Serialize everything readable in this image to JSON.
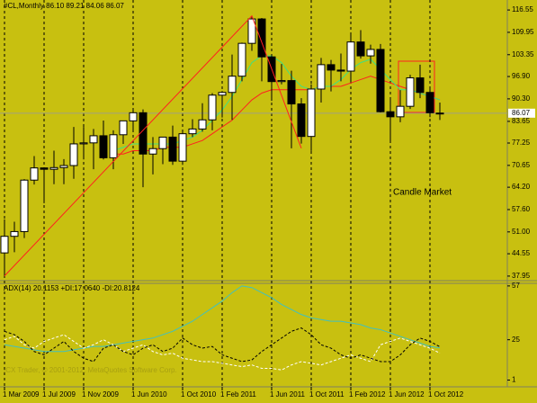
{
  "chart_data": {
    "type": "candlestick",
    "title": "#CL,Monthly 86.10 89.21 84.06 86.07",
    "annotation": "Candle Market",
    "copyright": "ICX Trader, © 2001-2012, MetaQuotes Software Corp.",
    "categories": [
      "1 Mar 2009",
      null,
      null,
      null,
      "1 Jul 2009",
      null,
      null,
      null,
      "1 Nov 2009",
      null,
      null,
      null,
      null,
      "1 Jun 2010",
      null,
      null,
      null,
      null,
      "1 Oct 2010",
      null,
      null,
      null,
      "1 Feb 2011",
      null,
      null,
      null,
      null,
      "1 Jun 2011",
      null,
      null,
      null,
      "1 Oct 2011",
      null,
      null,
      null,
      "1 Feb 2012",
      null,
      null,
      null,
      "1 Jun 2012",
      null,
      null,
      null,
      "1 Oct 2012",
      null
    ],
    "open": [
      44.8,
      49.7,
      51.1,
      66.3,
      69.9,
      69.5,
      70.0,
      70.6,
      77.0,
      77.3,
      79.4,
      72.9,
      79.7,
      83.8,
      86.2,
      74.0,
      75.6,
      79.0,
      71.9,
      80.0,
      81.4,
      84.1,
      91.4,
      92.2,
      97.0,
      106.7,
      113.9,
      102.7,
      95.4,
      95.7,
      88.8,
      79.2,
      93.2,
      100.4,
      98.8,
      98.5,
      107.1,
      103.0,
      104.9,
      86.5,
      85.0,
      88.1,
      96.5,
      92.2,
      86.1
    ],
    "high": [
      54.7,
      54.0,
      66.6,
      73.4,
      70.0,
      75.0,
      72.5,
      82.0,
      82.0,
      81.4,
      83.9,
      81.0,
      83.8,
      87.2,
      87.2,
      79.0,
      79.0,
      82.4,
      80.8,
      84.3,
      89.0,
      92.0,
      92.6,
      103.4,
      106.9,
      114.8,
      114.2,
      103.3,
      100.6,
      98.6,
      90.5,
      94.6,
      102.4,
      101.8,
      103.7,
      109.8,
      110.6,
      106.3,
      106.5,
      90.0,
      92.9,
      97.4,
      100.4,
      93.3,
      89.21
    ],
    "low": [
      38.0,
      45.0,
      49.2,
      65.0,
      59.5,
      65.1,
      65.1,
      66.7,
      72.4,
      69.5,
      72.4,
      69.5,
      77.0,
      80.6,
      64.2,
      68.0,
      71.0,
      70.8,
      70.8,
      79.0,
      80.6,
      81.0,
      84.8,
      84.1,
      95.5,
      104.5,
      95.5,
      89.7,
      94.6,
      75.7,
      77.1,
      74.9,
      89.2,
      92.5,
      95.5,
      95.4,
      102.2,
      100.7,
      86.3,
      77.3,
      83.4,
      87.3,
      90.5,
      84.9,
      84.06
    ],
    "close": [
      49.7,
      51.1,
      66.3,
      69.9,
      69.5,
      70.0,
      70.6,
      77.0,
      77.3,
      79.4,
      72.9,
      79.7,
      83.8,
      86.2,
      74.0,
      75.6,
      79.0,
      71.9,
      80.0,
      81.4,
      84.1,
      91.4,
      92.2,
      97.0,
      106.7,
      113.9,
      102.7,
      95.4,
      95.7,
      88.8,
      79.2,
      93.2,
      100.4,
      98.8,
      98.5,
      107.1,
      103.0,
      104.9,
      86.5,
      85.0,
      88.1,
      96.5,
      92.2,
      86.2,
      86.07
    ],
    "up_color": "#ffffff",
    "down_color": "#000000",
    "ylim": [
      36.6,
      119.5
    ],
    "yticks": [
      116.55,
      109.95,
      103.35,
      {
        "value": 96.9,
        "label": "96.90"
      },
      {
        "value": 90.3,
        "label": "90.30"
      },
      83.65,
      77.25,
      70.65,
      {
        "value": 64.2,
        "label": "64.20"
      },
      {
        "value": 57.6,
        "label": "57.60"
      },
      {
        "value": 51,
        "label": "51.00"
      },
      44.55,
      37.95
    ],
    "moving_averages": [
      {
        "color": "#ff2020",
        "values": [
          null,
          null,
          null,
          null,
          null,
          null,
          null,
          null,
          null,
          null,
          null,
          74,
          74,
          75,
          75,
          75,
          76,
          76,
          76,
          77,
          78,
          80,
          82,
          84,
          87,
          90,
          92,
          93,
          93,
          93,
          93,
          93,
          94,
          94,
          94,
          95,
          96,
          97,
          96,
          95,
          94,
          93,
          92,
          91,
          90
        ]
      },
      {
        "color": "#40e080",
        "values": [
          null,
          null,
          null,
          null,
          null,
          null,
          null,
          null,
          null,
          null,
          null,
          75,
          76,
          77,
          77,
          77,
          77,
          77,
          78,
          79,
          81,
          84,
          87,
          91,
          96,
          101,
          103,
          103,
          101,
          97,
          94,
          93,
          94,
          94,
          96,
          99,
          101,
          102,
          99,
          96,
          93,
          93,
          92,
          91,
          90
        ]
      }
    ],
    "zigzag": {
      "color": "#ff2020",
      "x": [
        0,
        25,
        30
      ],
      "values": [
        38.0,
        114.8,
        75.7
      ]
    },
    "indicator": {
      "type": "line",
      "label": "ADX(14) 20.1153 +DI:17.0640 -DI:20.8124",
      "ylim": [
        -3,
        58
      ],
      "yticks": [
        57,
        25,
        1
      ],
      "series": [
        {
          "color": "#40c0c0",
          "style": "solid",
          "values": [
            22,
            21,
            20,
            19,
            18,
            18,
            18,
            19,
            20,
            21,
            21,
            22,
            23,
            24,
            25,
            26,
            28,
            30,
            33,
            36,
            40,
            44,
            48,
            53,
            57,
            56,
            53,
            50,
            46,
            43,
            40,
            38,
            37,
            36,
            36,
            35,
            34,
            32,
            31,
            29,
            27,
            25,
            23,
            21,
            20.1153
          ]
        },
        {
          "color": "#ffffff",
          "style": "dashed",
          "values": [
            25,
            27,
            22,
            20,
            24,
            26,
            28,
            24,
            20,
            22,
            25,
            22,
            18,
            20,
            22,
            18,
            16,
            17,
            14,
            13,
            12,
            12,
            11,
            10,
            9,
            10,
            8,
            8,
            7,
            10,
            12,
            11,
            10,
            12,
            14,
            16,
            14,
            12,
            22,
            24,
            26,
            24,
            22,
            20,
            17.064
          ]
        },
        {
          "color": "#000000",
          "style": "dashed",
          "values": [
            30,
            28,
            24,
            18,
            16,
            20,
            24,
            18,
            14,
            12,
            20,
            22,
            18,
            16,
            20,
            22,
            18,
            20,
            26,
            22,
            20,
            21,
            16,
            14,
            12,
            13,
            18,
            22,
            26,
            30,
            32,
            28,
            22,
            20,
            16,
            14,
            16,
            14,
            12,
            12,
            16,
            22,
            26,
            24,
            20.8124
          ]
        }
      ]
    }
  }
}
